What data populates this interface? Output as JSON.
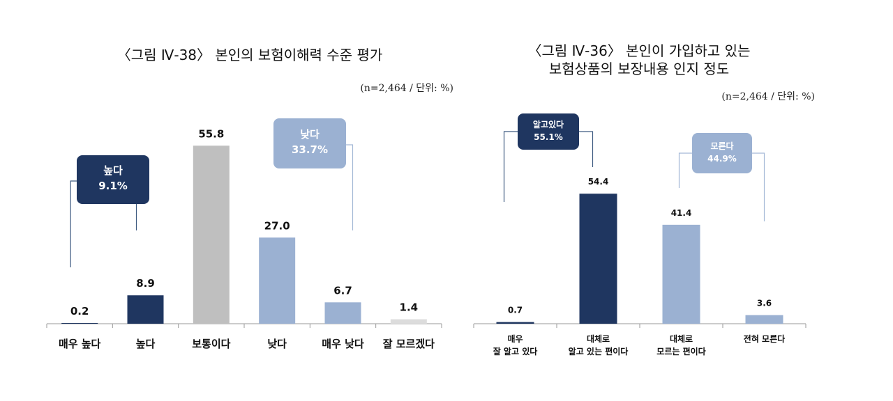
{
  "colors": {
    "dark_navy": "#1f3660",
    "light_blue": "#9bb1d2",
    "gray": "#bfbfbf",
    "light_gray": "#dcdcdc",
    "axis": "#9a9a9a",
    "bracket_dark": "#3d5a80",
    "bracket_light": "#a3b8d6"
  },
  "chart_data": [
    {
      "type": "bar",
      "title": "〈그림 Ⅳ-38〉 본인의 보험이해력 수준 평가",
      "unit_note": "(n=2,464 / 단위: %)",
      "categories": [
        "매우 높다",
        "높다",
        "보통이다",
        "낮다",
        "매우 낮다",
        "잘 모르겠다"
      ],
      "values": [
        0.2,
        8.9,
        55.8,
        27.0,
        6.7,
        1.4
      ],
      "value_labels": [
        "0.2",
        "8.9",
        "55.8",
        "27.0",
        "6.7",
        "1.4"
      ],
      "bar_colors": [
        "#1f3660",
        "#1f3660",
        "#bfbfbf",
        "#9bb1d2",
        "#9bb1d2",
        "#dcdcdc"
      ],
      "ylim": [
        0,
        60
      ],
      "grid": false,
      "annotations": [
        {
          "label": "높다",
          "value": "9.1%",
          "color": "#1f3660",
          "spans": [
            0,
            1
          ]
        },
        {
          "label": "낮다",
          "value": "33.7%",
          "color": "#9bb1d2",
          "spans": [
            3,
            4
          ]
        }
      ]
    },
    {
      "type": "bar",
      "title_line1": "〈그림 Ⅳ-36〉 본인이 가입하고 있는",
      "title_line2": "보험상품의 보장내용 인지 정도",
      "unit_note": "(n=2,464 / 단위: %)",
      "categories": [
        [
          "매우",
          "잘 알고 있다"
        ],
        [
          "대체로",
          "알고 있는 편이다"
        ],
        [
          "대체로",
          "모르는 편이다"
        ],
        [
          "전혀 모른다"
        ]
      ],
      "values": [
        0.7,
        54.4,
        41.4,
        3.6
      ],
      "value_labels": [
        "0.7",
        "54.4",
        "41.4",
        "3.6"
      ],
      "bar_colors": [
        "#1f3660",
        "#1f3660",
        "#9bb1d2",
        "#9bb1d2"
      ],
      "ylim": [
        0,
        60
      ],
      "grid": false,
      "annotations": [
        {
          "label": "알고있다",
          "value": "55.1%",
          "color": "#1f3660",
          "spans": [
            0,
            1
          ]
        },
        {
          "label": "모른다",
          "value": "44.9%",
          "color": "#9bb1d2",
          "spans": [
            2,
            3
          ]
        }
      ]
    }
  ]
}
